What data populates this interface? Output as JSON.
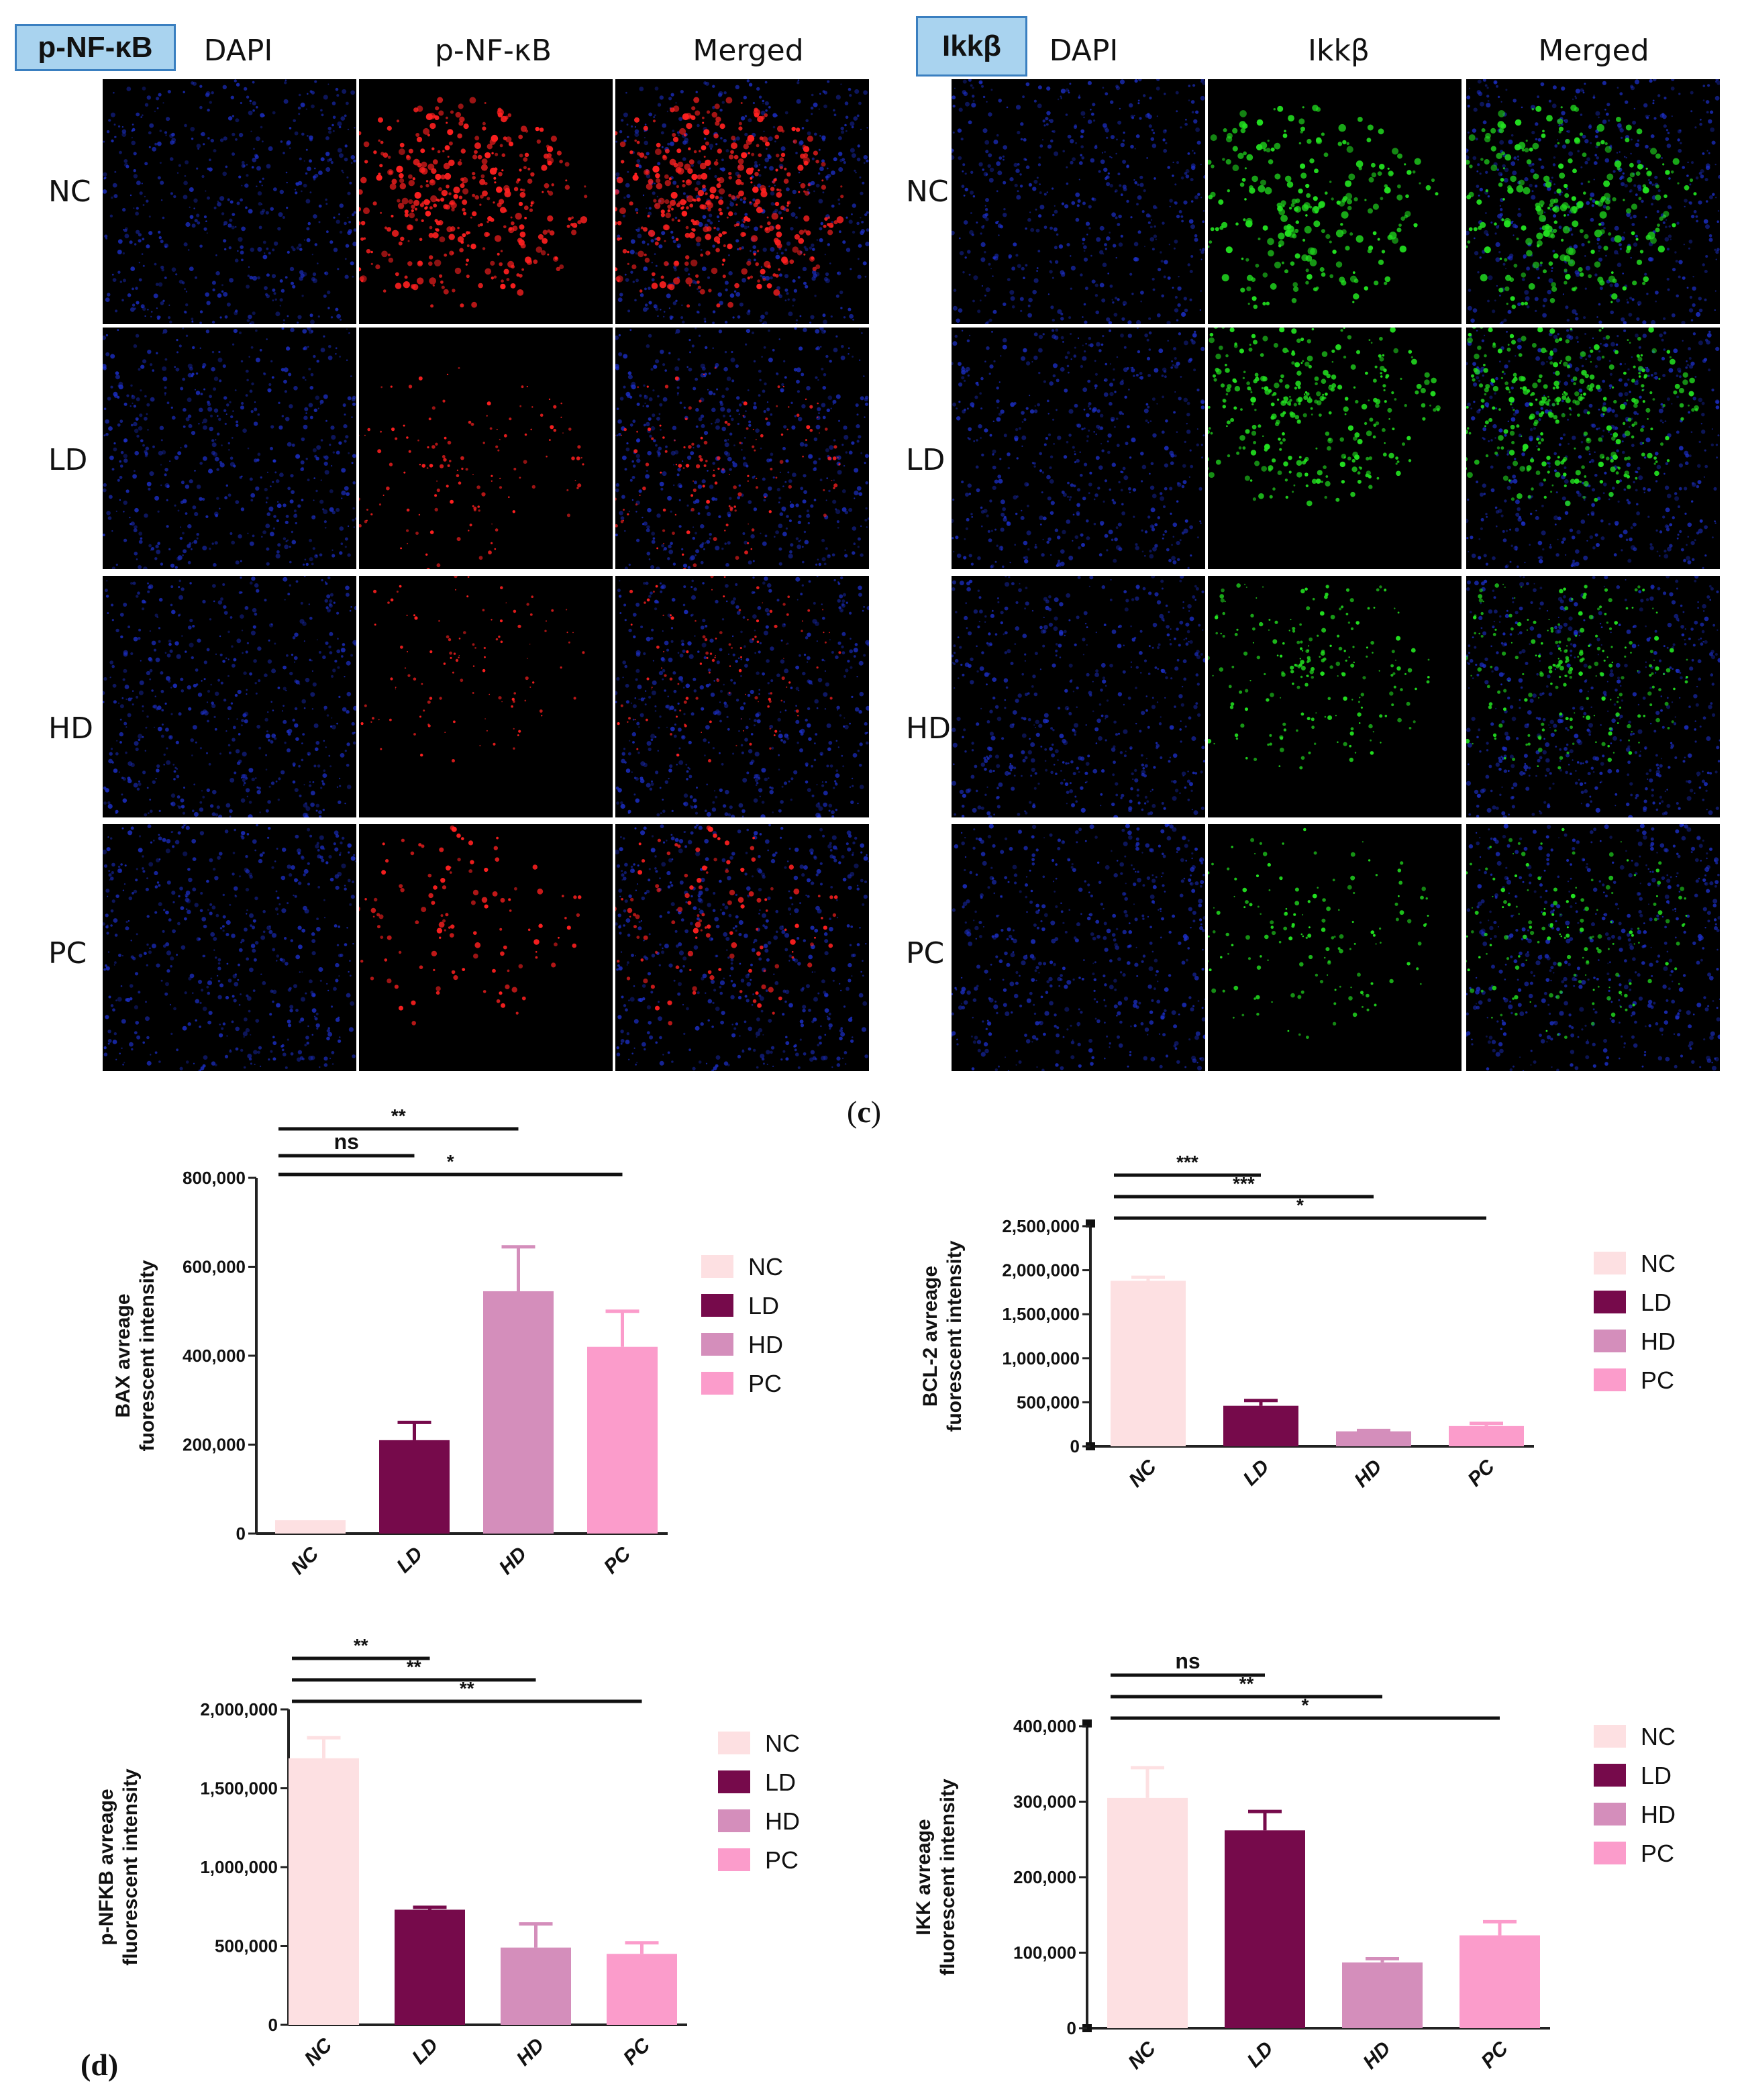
{
  "figure_c": {
    "caption_open": "(",
    "caption_letter": "c",
    "caption_close": ")",
    "panels": [
      {
        "tag": "p-NF-κB",
        "columns": [
          "DAPI",
          "p-NF-κB",
          "Merged"
        ],
        "rows": [
          "NC",
          "LD",
          "HD",
          "PC"
        ],
        "stain_color": "#ff2020",
        "nuclear_color": "#1c2fc8"
      },
      {
        "tag": "Ikkβ",
        "columns": [
          "DAPI",
          "Ikkβ",
          "Merged"
        ],
        "rows": [
          "NC",
          "LD",
          "HD",
          "PC"
        ],
        "stain_color": "#22e020",
        "nuclear_color": "#1c2fc8"
      }
    ]
  },
  "figure_d": {
    "caption": "(d)"
  },
  "chart_data": [
    {
      "type": "bar",
      "ylabel_line1": "BAX avreage",
      "ylabel_line2": "fuorescent intensity",
      "categories": [
        "NC",
        "LD",
        "HD",
        "PC"
      ],
      "values": [
        30000,
        210000,
        545000,
        420000
      ],
      "errors": [
        0,
        40000,
        100000,
        80000
      ],
      "ylim": [
        0,
        800000
      ],
      "yticks": [
        "0",
        "200,000",
        "400,000",
        "600,000",
        "800,000"
      ],
      "broken_axis": false,
      "legend": [
        "NC",
        "LD",
        "HD",
        "PC"
      ],
      "legend_position": "right",
      "significance": [
        {
          "from": "NC",
          "to": "LD",
          "label": "ns"
        },
        {
          "from": "NC",
          "to": "HD",
          "label": "**"
        },
        {
          "from": "NC",
          "to": "PC",
          "label": "*"
        }
      ]
    },
    {
      "type": "bar",
      "ylabel_line1": "BCL-2 avreage",
      "ylabel_line2": "fuorescent intensity",
      "categories": [
        "NC",
        "LD",
        "HD",
        "PC"
      ],
      "values": [
        1880000,
        460000,
        170000,
        230000
      ],
      "errors": [
        40000,
        60000,
        10000,
        30000
      ],
      "ylim": [
        0,
        2500000
      ],
      "yticks": [
        "0",
        "500,000",
        "1,000,000",
        "1,500,000",
        "2,000,000",
        "2,500,000"
      ],
      "broken_axis": true,
      "legend": [
        "NC",
        "LD",
        "HD",
        "PC"
      ],
      "legend_position": "top-right",
      "significance": [
        {
          "from": "NC",
          "to": "LD",
          "label": "***"
        },
        {
          "from": "NC",
          "to": "HD",
          "label": "***"
        },
        {
          "from": "NC",
          "to": "PC",
          "label": "*"
        }
      ]
    },
    {
      "type": "bar",
      "ylabel_line1": "p-NFKB avreage",
      "ylabel_line2": "fluorescent intensity",
      "categories": [
        "NC",
        "LD",
        "HD",
        "PC"
      ],
      "values": [
        1690000,
        730000,
        490000,
        450000
      ],
      "errors": [
        130000,
        15000,
        150000,
        70000
      ],
      "ylim": [
        0,
        2000000
      ],
      "yticks": [
        "0",
        "500,000",
        "1,000,000",
        "1,500,000",
        "2,000,000"
      ],
      "broken_axis": false,
      "legend": [
        "NC",
        "LD",
        "HD",
        "PC"
      ],
      "legend_position": "right",
      "significance": [
        {
          "from": "NC",
          "to": "LD",
          "label": "**"
        },
        {
          "from": "NC",
          "to": "HD",
          "label": "**"
        },
        {
          "from": "NC",
          "to": "PC",
          "label": "**"
        }
      ]
    },
    {
      "type": "bar",
      "ylabel_line1": "IKK avreage",
      "ylabel_line2": "fluorescent intensity",
      "categories": [
        "NC",
        "LD",
        "HD",
        "PC"
      ],
      "values": [
        305000,
        262000,
        87000,
        123000
      ],
      "errors": [
        40000,
        25000,
        5000,
        18000
      ],
      "ylim": [
        0,
        400000
      ],
      "yticks": [
        "0",
        "100,000",
        "200,000",
        "300,000",
        "400,000"
      ],
      "broken_axis": true,
      "legend": [
        "NC",
        "LD",
        "HD",
        "PC"
      ],
      "legend_position": "right",
      "significance": [
        {
          "from": "NC",
          "to": "LD",
          "label": "ns"
        },
        {
          "from": "NC",
          "to": "HD",
          "label": "**"
        },
        {
          "from": "NC",
          "to": "PC",
          "label": "*"
        }
      ]
    }
  ],
  "colors": {
    "NC": "#fde0e2",
    "LD": "#760a4b",
    "HD": "#d48ebb",
    "PC": "#fb9ccb"
  }
}
